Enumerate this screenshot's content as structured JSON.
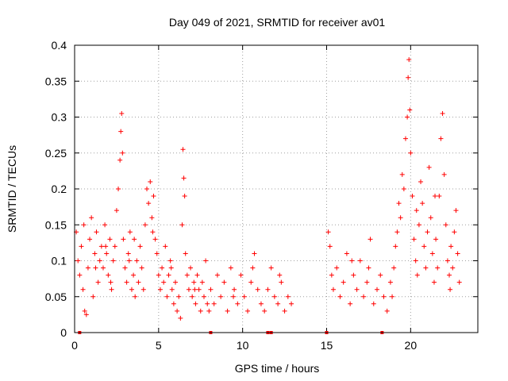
{
  "chart_data": {
    "type": "scatter",
    "title": "Day 049 of 2021, SRMTID for receiver av01",
    "xlabel": "GPS time / hours",
    "ylabel": "SRMTID / TECUs",
    "xlim": [
      0,
      24
    ],
    "ylim": [
      0,
      0.4
    ],
    "xticks": [
      0,
      5,
      10,
      15,
      20
    ],
    "xtick_labels": [
      "0",
      "5",
      "10",
      "15",
      "20"
    ],
    "yticks": [
      0,
      0.05,
      0.1,
      0.15,
      0.2,
      0.25,
      0.3,
      0.35,
      0.4
    ],
    "ytick_labels": [
      "0",
      "0.05",
      "0.1",
      "0.15",
      "0.2",
      "0.25",
      "0.3",
      "0.35",
      "0.4"
    ],
    "grid": true,
    "marker": "+",
    "color": "#ff0000",
    "zero_markers_x": [
      0.3,
      8.1,
      11.5,
      11.7,
      15.0,
      18.3
    ],
    "points": [
      [
        0.1,
        0.14
      ],
      [
        0.2,
        0.1
      ],
      [
        0.3,
        0.08
      ],
      [
        0.4,
        0.12
      ],
      [
        0.5,
        0.06
      ],
      [
        0.6,
        0.03
      ],
      [
        0.7,
        0.025
      ],
      [
        0.8,
        0.09
      ],
      [
        0.9,
        0.13
      ],
      [
        1.0,
        0.16
      ],
      [
        1.1,
        0.05
      ],
      [
        1.2,
        0.11
      ],
      [
        1.3,
        0.14
      ],
      [
        1.4,
        0.07
      ],
      [
        1.5,
        0.1
      ],
      [
        1.6,
        0.12
      ],
      [
        1.7,
        0.09
      ],
      [
        1.8,
        0.15
      ],
      [
        1.9,
        0.11
      ],
      [
        2.0,
        0.08
      ],
      [
        2.1,
        0.13
      ],
      [
        2.2,
        0.06
      ],
      [
        2.3,
        0.1
      ],
      [
        2.4,
        0.12
      ],
      [
        2.5,
        0.17
      ],
      [
        2.6,
        0.2
      ],
      [
        2.7,
        0.24
      ],
      [
        2.75,
        0.28
      ],
      [
        2.8,
        0.305
      ],
      [
        2.85,
        0.25
      ],
      [
        2.9,
        0.13
      ],
      [
        3.0,
        0.09
      ],
      [
        3.1,
        0.07
      ],
      [
        3.2,
        0.11
      ],
      [
        3.3,
        0.14
      ],
      [
        3.4,
        0.06
      ],
      [
        3.5,
        0.08
      ],
      [
        3.6,
        0.05
      ],
      [
        3.7,
        0.1
      ],
      [
        3.8,
        0.07
      ],
      [
        3.9,
        0.12
      ],
      [
        4.0,
        0.09
      ],
      [
        4.1,
        0.06
      ],
      [
        4.2,
        0.15
      ],
      [
        4.3,
        0.2
      ],
      [
        4.4,
        0.18
      ],
      [
        4.5,
        0.21
      ],
      [
        4.6,
        0.16
      ],
      [
        4.7,
        0.19
      ],
      [
        4.8,
        0.13
      ],
      [
        4.9,
        0.11
      ],
      [
        5.0,
        0.08
      ],
      [
        5.1,
        0.06
      ],
      [
        5.2,
        0.09
      ],
      [
        5.3,
        0.07
      ],
      [
        5.4,
        0.12
      ],
      [
        5.5,
        0.05
      ],
      [
        5.6,
        0.08
      ],
      [
        5.7,
        0.1
      ],
      [
        5.8,
        0.06
      ],
      [
        5.9,
        0.04
      ],
      [
        6.0,
        0.07
      ],
      [
        6.1,
        0.03
      ],
      [
        6.2,
        0.05
      ],
      [
        6.3,
        0.02
      ],
      [
        6.4,
        0.15
      ],
      [
        6.45,
        0.255
      ],
      [
        6.5,
        0.215
      ],
      [
        6.55,
        0.19
      ],
      [
        6.6,
        0.11
      ],
      [
        6.7,
        0.08
      ],
      [
        6.8,
        0.06
      ],
      [
        6.9,
        0.09
      ],
      [
        7.0,
        0.05
      ],
      [
        7.1,
        0.07
      ],
      [
        7.2,
        0.04
      ],
      [
        7.3,
        0.08
      ],
      [
        7.4,
        0.06
      ],
      [
        7.5,
        0.03
      ],
      [
        7.6,
        0.07
      ],
      [
        7.7,
        0.05
      ],
      [
        7.8,
        0.1
      ],
      [
        7.9,
        0.04
      ],
      [
        8.0,
        0.03
      ],
      [
        8.1,
        0.06
      ],
      [
        8.3,
        0.04
      ],
      [
        8.5,
        0.08
      ],
      [
        8.7,
        0.05
      ],
      [
        8.9,
        0.07
      ],
      [
        9.1,
        0.03
      ],
      [
        9.3,
        0.09
      ],
      [
        9.5,
        0.06
      ],
      [
        9.7,
        0.04
      ],
      [
        9.9,
        0.08
      ],
      [
        10.1,
        0.05
      ],
      [
        10.3,
        0.03
      ],
      [
        10.5,
        0.07
      ],
      [
        10.7,
        0.11
      ],
      [
        10.9,
        0.06
      ],
      [
        11.1,
        0.04
      ],
      [
        11.3,
        0.03
      ],
      [
        11.5,
        0.06
      ],
      [
        11.7,
        0.09
      ],
      [
        11.9,
        0.05
      ],
      [
        12.1,
        0.04
      ],
      [
        12.3,
        0.07
      ],
      [
        12.5,
        0.03
      ],
      [
        12.7,
        0.05
      ],
      [
        12.9,
        0.04
      ],
      [
        15.1,
        0.14
      ],
      [
        15.2,
        0.12
      ],
      [
        15.3,
        0.08
      ],
      [
        15.4,
        0.06
      ],
      [
        15.6,
        0.09
      ],
      [
        15.8,
        0.05
      ],
      [
        16.0,
        0.07
      ],
      [
        16.2,
        0.11
      ],
      [
        16.4,
        0.04
      ],
      [
        16.6,
        0.08
      ],
      [
        16.8,
        0.06
      ],
      [
        17.0,
        0.1
      ],
      [
        17.2,
        0.05
      ],
      [
        17.4,
        0.07
      ],
      [
        17.6,
        0.13
      ],
      [
        17.8,
        0.04
      ],
      [
        18.0,
        0.06
      ],
      [
        18.2,
        0.08
      ],
      [
        18.4,
        0.05
      ],
      [
        18.6,
        0.03
      ],
      [
        18.8,
        0.07
      ],
      [
        19.0,
        0.09
      ],
      [
        19.1,
        0.12
      ],
      [
        19.2,
        0.14
      ],
      [
        19.3,
        0.18
      ],
      [
        19.4,
        0.16
      ],
      [
        19.5,
        0.22
      ],
      [
        19.6,
        0.2
      ],
      [
        19.7,
        0.27
      ],
      [
        19.8,
        0.3
      ],
      [
        19.85,
        0.355
      ],
      [
        19.9,
        0.38
      ],
      [
        19.95,
        0.31
      ],
      [
        20.0,
        0.25
      ],
      [
        20.1,
        0.19
      ],
      [
        20.2,
        0.13
      ],
      [
        20.3,
        0.1
      ],
      [
        20.4,
        0.08
      ],
      [
        20.5,
        0.15
      ],
      [
        20.6,
        0.21
      ],
      [
        20.7,
        0.18
      ],
      [
        20.8,
        0.12
      ],
      [
        20.9,
        0.09
      ],
      [
        21.0,
        0.14
      ],
      [
        21.1,
        0.23
      ],
      [
        21.2,
        0.16
      ],
      [
        21.3,
        0.11
      ],
      [
        21.4,
        0.07
      ],
      [
        21.5,
        0.13
      ],
      [
        21.6,
        0.09
      ],
      [
        21.7,
        0.19
      ],
      [
        21.8,
        0.27
      ],
      [
        21.9,
        0.305
      ],
      [
        22.0,
        0.22
      ],
      [
        22.1,
        0.15
      ],
      [
        22.2,
        0.1
      ],
      [
        22.3,
        0.08
      ],
      [
        22.4,
        0.12
      ],
      [
        22.5,
        0.09
      ],
      [
        22.6,
        0.14
      ],
      [
        22.7,
        0.17
      ],
      [
        22.8,
        0.11
      ],
      [
        22.9,
        0.07
      ],
      [
        1.25,
        0.09
      ],
      [
        2.15,
        0.07
      ],
      [
        3.55,
        0.13
      ],
      [
        4.65,
        0.14
      ],
      [
        5.75,
        0.09
      ],
      [
        7.15,
        0.06
      ],
      [
        9.45,
        0.05
      ],
      [
        10.6,
        0.09
      ],
      [
        16.5,
        0.1
      ],
      [
        17.5,
        0.09
      ],
      [
        18.9,
        0.05
      ],
      [
        20.35,
        0.17
      ],
      [
        21.45,
        0.19
      ],
      [
        22.35,
        0.06
      ],
      [
        0.55,
        0.15
      ],
      [
        1.85,
        0.12
      ],
      [
        3.25,
        0.1
      ],
      [
        12.2,
        0.08
      ]
    ]
  }
}
